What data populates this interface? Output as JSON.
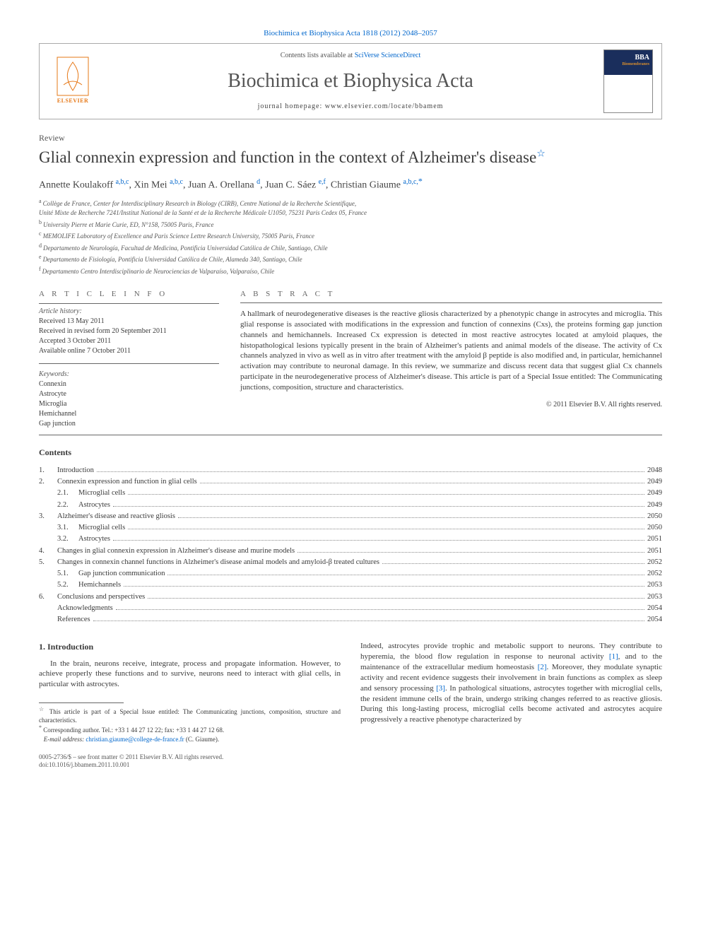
{
  "colors": {
    "link": "#0066cc",
    "text": "#3a3a3a",
    "muted": "#555555",
    "logo": "#e67817",
    "rule": "#666666"
  },
  "header": {
    "top_link_text": "Biochimica et Biophysica Acta 1818 (2012) 2048–2057",
    "contents_prefix": "Contents lists available at ",
    "contents_link": "SciVerse ScienceDirect",
    "journal_name": "Biochimica et Biophysica Acta",
    "homepage_label": "journal homepage: www.elsevier.com/locate/bbamem",
    "publisher": "ELSEVIER",
    "cover_badge": "BBA",
    "cover_sub": "Biomembranes"
  },
  "doc_type": "Review",
  "title": "Glial connexin expression and function in the context of Alzheimer's disease",
  "authors": [
    {
      "name": "Annette Koulakoff ",
      "aff": "a,b,c"
    },
    {
      "name": ", Xin Mei ",
      "aff": "a,b,c"
    },
    {
      "name": ", Juan A. Orellana ",
      "aff": "d"
    },
    {
      "name": ", Juan C. Sáez ",
      "aff": "e,f"
    },
    {
      "name": ", Christian Giaume ",
      "aff": "a,b,c,",
      "corr": "*"
    }
  ],
  "affiliations": [
    {
      "sup": "a",
      "text": "Collège de France, Center for Interdisciplinary Research in Biology (CIRB), Centre National de la Recherche Scientifique,"
    },
    {
      "sup": "",
      "text": "Unité Mixte de Recherche 7241/Institut National de la Santé et de la Recherche Médicale U1050, 75231 Paris Cedex 05, France"
    },
    {
      "sup": "b",
      "text": "University Pierre et Marie Curie, ED, N°158, 75005 Paris, France"
    },
    {
      "sup": "c",
      "text": "MEMOLIFE Laboratory of Excellence and Paris Science Lettre Research University, 75005 Paris, France"
    },
    {
      "sup": "d",
      "text": "Departamento de Neurología, Facultad de Medicina, Pontificia Universidad Católica de Chile, Santiago, Chile"
    },
    {
      "sup": "e",
      "text": "Departamento de Fisiología, Pontificia Universidad Católica de Chile, Alameda 340, Santiago, Chile"
    },
    {
      "sup": "f",
      "text": "Departamento Centro Interdisciplinario de Neurociencias de Valparaíso, Valparaíso, Chile"
    }
  ],
  "article_info": {
    "heading": "A R T I C L E   I N F O",
    "history_label": "Article history:",
    "history": [
      "Received 13 May 2011",
      "Received in revised form 20 September 2011",
      "Accepted 3 October 2011",
      "Available online 7 October 2011"
    ],
    "keywords_label": "Keywords:",
    "keywords": [
      "Connexin",
      "Astrocyte",
      "Microglia",
      "Hemichannel",
      "Gap junction"
    ]
  },
  "abstract": {
    "heading": "A B S T R A C T",
    "text": "A hallmark of neurodegenerative diseases is the reactive gliosis characterized by a phenotypic change in astrocytes and microglia. This glial response is associated with modifications in the expression and function of connexins (Cxs), the proteins forming gap junction channels and hemichannels. Increased Cx expression is detected in most reactive astrocytes located at amyloid plaques, the histopathological lesions typically present in the brain of Alzheimer's patients and animal models of the disease. The activity of Cx channels analyzed in vivo as well as in vitro after treatment with the amyloid β peptide is also modified and, in particular, hemichannel activation may contribute to neuronal damage. In this review, we summarize and discuss recent data that suggest glial Cx channels participate in the neurodegenerative process of Alzheimer's disease. This article is part of a Special Issue entitled: The Communicating junctions, composition, structure and characteristics.",
    "copyright": "© 2011 Elsevier B.V. All rights reserved."
  },
  "contents": {
    "heading": "Contents",
    "items": [
      {
        "num": "1.",
        "label": "Introduction",
        "page": "2048",
        "indent": 0
      },
      {
        "num": "2.",
        "label": "Connexin expression and function in glial cells",
        "page": "2049",
        "indent": 0
      },
      {
        "num": "2.1.",
        "label": "Microglial cells",
        "page": "2049",
        "indent": 1
      },
      {
        "num": "2.2.",
        "label": "Astrocytes",
        "page": "2049",
        "indent": 1
      },
      {
        "num": "3.",
        "label": "Alzheimer's disease and reactive gliosis",
        "page": "2050",
        "indent": 0
      },
      {
        "num": "3.1.",
        "label": "Microglial cells",
        "page": "2050",
        "indent": 1
      },
      {
        "num": "3.2.",
        "label": "Astrocytes",
        "page": "2051",
        "indent": 1
      },
      {
        "num": "4.",
        "label": "Changes in glial connexin expression in Alzheimer's disease and murine models",
        "page": "2051",
        "indent": 0
      },
      {
        "num": "5.",
        "label": "Changes in connexin channel functions in Alzheimer's disease animal models and amyloid-β treated cultures",
        "page": "2052",
        "indent": 0
      },
      {
        "num": "5.1.",
        "label": "Gap junction communication",
        "page": "2052",
        "indent": 1
      },
      {
        "num": "5.2.",
        "label": "Hemichannels",
        "page": "2053",
        "indent": 1
      },
      {
        "num": "6.",
        "label": "Conclusions and perspectives",
        "page": "2053",
        "indent": 0
      },
      {
        "num": "",
        "label": "Acknowledgments",
        "page": "2054",
        "indent": 0
      },
      {
        "num": "",
        "label": "References",
        "page": "2054",
        "indent": 0
      }
    ]
  },
  "section1": {
    "heading": "1. Introduction",
    "col1": "In the brain, neurons receive, integrate, process and propagate information. However, to achieve properly these functions and to survive, neurons need to interact with glial cells, in particular with astrocytes.",
    "col2_pre": "Indeed, astrocytes provide trophic and metabolic support to neurons. They contribute to hyperemia, the blood flow regulation in response to neuronal activity ",
    "ref1": "[1]",
    "col2_mid1": ", and to the maintenance of the extracellular medium homeostasis ",
    "ref2": "[2]",
    "col2_mid2": ". Moreover, they modulate synaptic activity and recent evidence suggests their involvement in brain functions as complex as sleep and sensory processing ",
    "ref3": "[3]",
    "col2_post": ". In pathological situations, astrocytes together with microglial cells, the resident immune cells of the brain, undergo striking changes referred to as reactive gliosis. During this long-lasting process, microglial cells become activated and astrocytes acquire progressively a reactive phenotype characterized by"
  },
  "footnotes": {
    "star": "This article is part of a Special Issue entitled: The Communicating junctions, composition, structure and characteristics.",
    "corr": "Corresponding author. Tel.: +33 1 44 27 12 22; fax: +33 1 44 27 12 68.",
    "email_label": "E-mail address: ",
    "email": "christian.giaume@college-de-france.fr",
    "email_after": " (C. Giaume)."
  },
  "bottom": {
    "line1": "0005-2736/$ – see front matter © 2011 Elsevier B.V. All rights reserved.",
    "line2": "doi:10.1016/j.bbamem.2011.10.001"
  }
}
